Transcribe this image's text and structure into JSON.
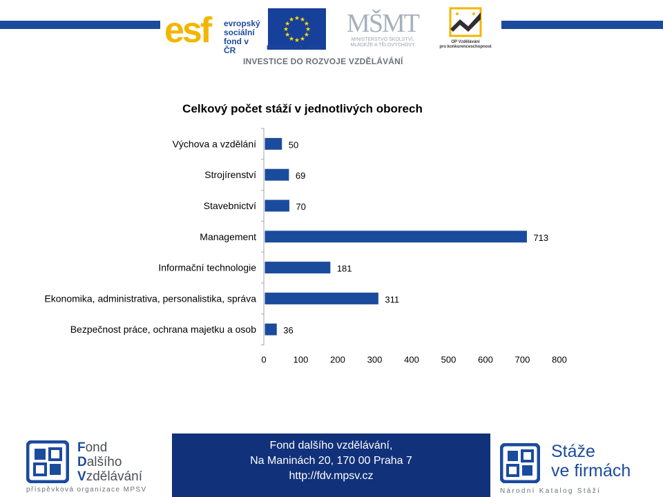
{
  "header": {
    "esf_mark": "esf",
    "esf_text_1": "evropský",
    "esf_text_2": "sociální",
    "esf_text_3": "fond v ČR",
    "eu_caption": "EVROPSKÁ UNIE",
    "msmt_caption_1": "MINISTERSTVO ŠKOLSTVÍ,",
    "msmt_caption_2": "MLÁDEŽE A TĚLOVÝCHOVY",
    "op_caption_1": "OP Vzdělávání",
    "op_caption_2": "pro konkurenceschopnost",
    "tagline": "INVESTICE DO ROZVOJE VZDĚLÁVÁNÍ",
    "colors": {
      "esf_blue": "#1b4b9c",
      "esf_yellow": "#f2b600",
      "eu_blue": "#17409a",
      "eu_star": "#ffdd00"
    }
  },
  "chart_data": {
    "type": "bar",
    "orientation": "horizontal",
    "title": "Celkový počet stáží v jednotlivých oborech",
    "categories": [
      "Výchova a vzdělání",
      "Strojírenství",
      "Stavebnictví",
      "Management",
      "Informační technologie",
      "Ekonomika, administrativa, personalistika, správa",
      "Bezpečnost práce, ochrana majetku a osob"
    ],
    "values": [
      50,
      69,
      70,
      713,
      181,
      311,
      36
    ],
    "xlim": [
      0,
      800
    ],
    "xticks": [
      0,
      100,
      200,
      300,
      400,
      500,
      600,
      700,
      800
    ],
    "grid": false,
    "legend": "none",
    "data_labels": true,
    "bar_color": "#1b4b9c"
  },
  "footer": {
    "fdv_name_1_cap": "F",
    "fdv_name_1_rest": "ond",
    "fdv_name_2_cap": "D",
    "fdv_name_2_rest": "alšího",
    "fdv_name_3_cap": "V",
    "fdv_name_3_rest": "zdělávání",
    "fdv_sub": "příspěvková organizace MPSV",
    "address_line_1": "Fond dalšího vzdělávání,",
    "address_line_2": "Na Maninách 20, 170 00  Praha 7",
    "address_line_3": "http://fdv.mpsv.cz",
    "staze_line_1": "Stáže",
    "staze_line_2": "ve firmách",
    "staze_sub": "Národní Katalog Stáží"
  }
}
